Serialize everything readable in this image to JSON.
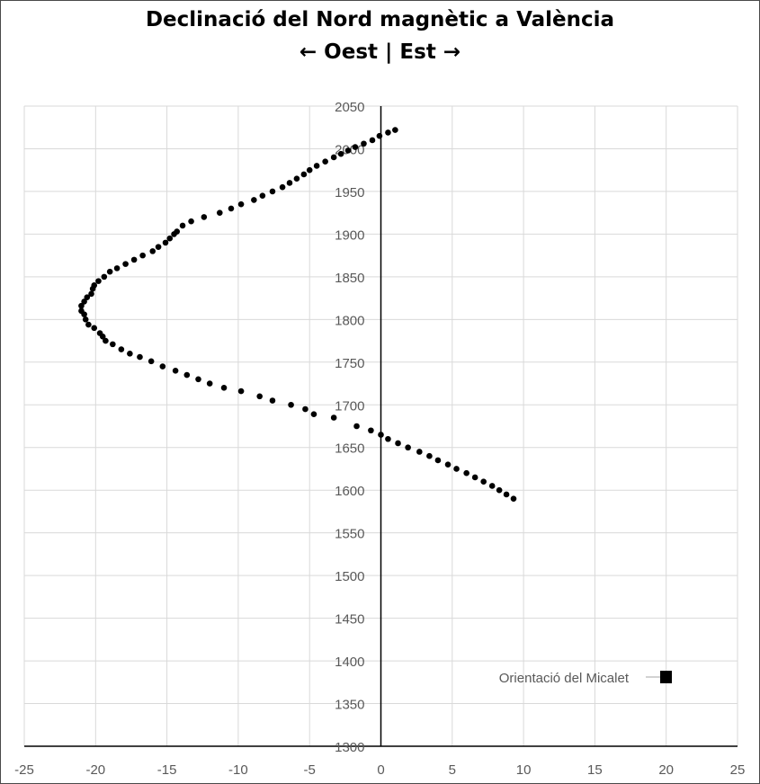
{
  "chart_data": {
    "type": "scatter",
    "title": "Declinació del Nord magnètic a València",
    "subtitle": "← Oest | Est →",
    "xlim": [
      -25,
      25
    ],
    "ylim": [
      1300,
      2050
    ],
    "x_ticks": [
      -25,
      -20,
      -15,
      -10,
      -5,
      0,
      5,
      10,
      15,
      20,
      25
    ],
    "y_ticks": [
      1300,
      1350,
      1400,
      1450,
      1500,
      1550,
      1600,
      1650,
      1700,
      1750,
      1800,
      1850,
      1900,
      1950,
      2000,
      2050
    ],
    "grid": true,
    "legend_position": "bottom-right",
    "series": [
      {
        "name": "Orientació del Micalet",
        "color": "#000000",
        "marker": "circle",
        "points": [
          [
            9.3,
            1590
          ],
          [
            8.8,
            1595
          ],
          [
            8.3,
            1600
          ],
          [
            7.8,
            1605
          ],
          [
            7.2,
            1610
          ],
          [
            6.6,
            1615
          ],
          [
            6.0,
            1620
          ],
          [
            5.3,
            1625
          ],
          [
            4.7,
            1630
          ],
          [
            4.0,
            1635
          ],
          [
            3.4,
            1640
          ],
          [
            2.7,
            1645
          ],
          [
            1.9,
            1650
          ],
          [
            1.2,
            1655
          ],
          [
            0.5,
            1660
          ],
          [
            0.0,
            1665
          ],
          [
            -0.7,
            1670
          ],
          [
            -1.7,
            1675
          ],
          [
            -3.3,
            1685
          ],
          [
            -4.7,
            1689
          ],
          [
            -5.3,
            1695
          ],
          [
            -6.3,
            1700
          ],
          [
            -7.6,
            1705
          ],
          [
            -8.5,
            1710
          ],
          [
            -9.8,
            1716
          ],
          [
            -11.0,
            1720
          ],
          [
            -12.0,
            1725
          ],
          [
            -12.8,
            1730
          ],
          [
            -13.6,
            1735
          ],
          [
            -14.4,
            1740
          ],
          [
            -15.3,
            1745
          ],
          [
            -16.1,
            1751
          ],
          [
            -16.9,
            1756
          ],
          [
            -17.6,
            1760
          ],
          [
            -18.2,
            1765
          ],
          [
            -18.8,
            1771
          ],
          [
            -19.3,
            1775
          ],
          [
            -19.5,
            1780
          ],
          [
            -19.7,
            1784
          ],
          [
            -20.1,
            1790
          ],
          [
            -20.5,
            1794
          ],
          [
            -20.7,
            1800
          ],
          [
            -20.8,
            1806
          ],
          [
            -21.0,
            1810
          ],
          [
            -21.0,
            1816
          ],
          [
            -20.8,
            1821
          ],
          [
            -20.6,
            1826
          ],
          [
            -20.3,
            1830
          ],
          [
            -20.2,
            1836
          ],
          [
            -20.1,
            1840
          ],
          [
            -19.8,
            1845
          ],
          [
            -19.4,
            1850
          ],
          [
            -19.0,
            1856
          ],
          [
            -18.5,
            1860
          ],
          [
            -17.9,
            1865
          ],
          [
            -17.3,
            1870
          ],
          [
            -16.7,
            1875
          ],
          [
            -16.0,
            1880
          ],
          [
            -15.6,
            1885
          ],
          [
            -15.1,
            1890
          ],
          [
            -14.8,
            1895
          ],
          [
            -14.5,
            1900
          ],
          [
            -14.3,
            1903
          ],
          [
            -13.9,
            1910
          ],
          [
            -13.3,
            1915
          ],
          [
            -12.4,
            1920
          ],
          [
            -11.3,
            1925
          ],
          [
            -10.5,
            1930
          ],
          [
            -9.8,
            1935
          ],
          [
            -8.9,
            1940
          ],
          [
            -8.3,
            1945
          ],
          [
            -7.6,
            1950
          ],
          [
            -6.9,
            1955
          ],
          [
            -6.4,
            1960
          ],
          [
            -5.9,
            1965
          ],
          [
            -5.4,
            1970
          ],
          [
            -5.0,
            1975
          ],
          [
            -4.5,
            1980
          ],
          [
            -3.9,
            1985
          ],
          [
            -3.3,
            1990
          ],
          [
            -2.8,
            1994
          ],
          [
            -2.3,
            1998
          ],
          [
            -1.8,
            2002
          ],
          [
            -1.2,
            2006
          ],
          [
            -0.6,
            2010
          ],
          [
            -0.1,
            2015
          ],
          [
            0.5,
            2019
          ],
          [
            1.0,
            2022
          ]
        ]
      }
    ]
  }
}
